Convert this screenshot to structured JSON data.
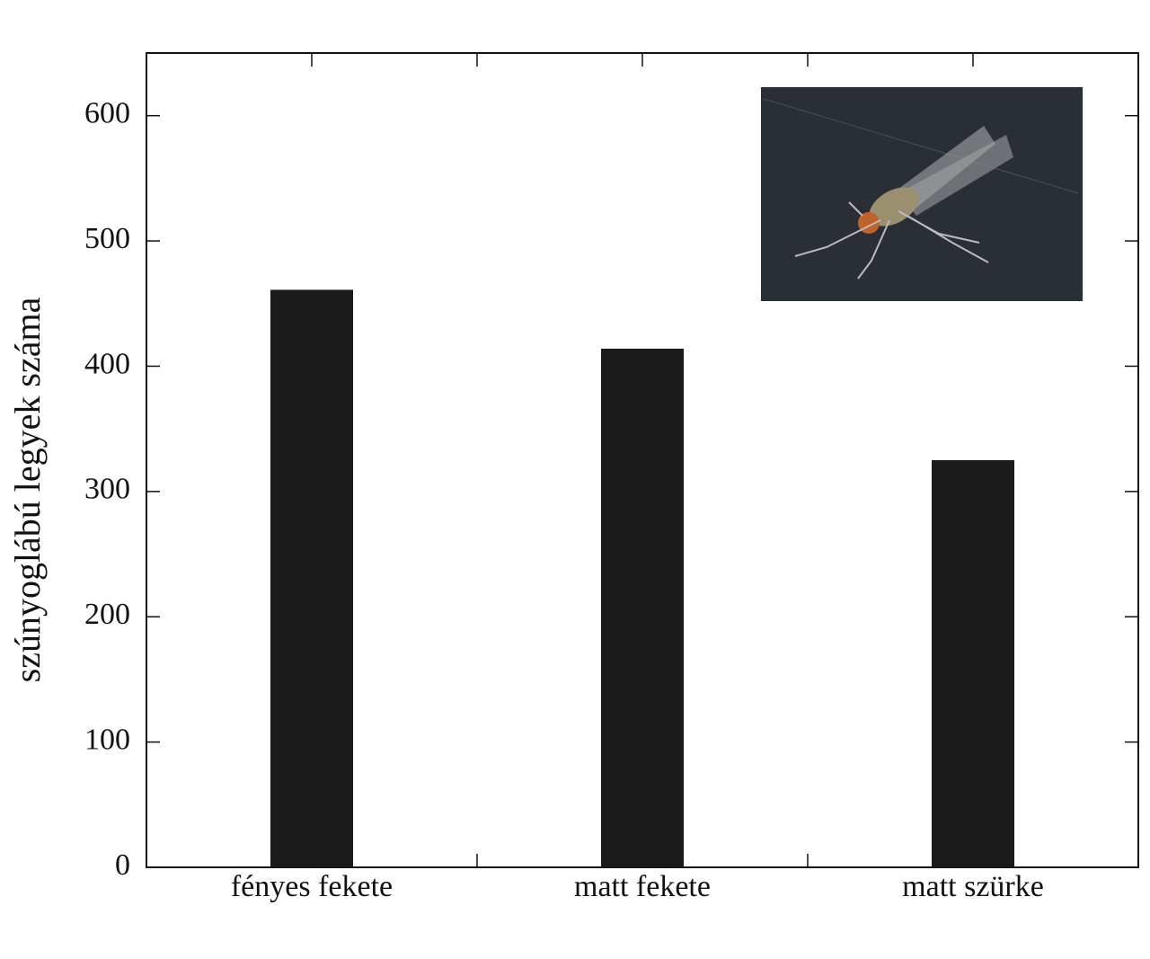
{
  "chart_data": {
    "type": "bar",
    "y_label": "szúnyoglábú legyek száma",
    "categories": [
      "fényes fekete",
      "matt fekete",
      "matt szürke"
    ],
    "values": [
      461,
      414,
      325
    ],
    "color": "#1a1a1a",
    "ylim": [
      0,
      650
    ],
    "yticks": [
      0,
      100,
      200,
      300,
      400,
      500,
      600
    ]
  }
}
